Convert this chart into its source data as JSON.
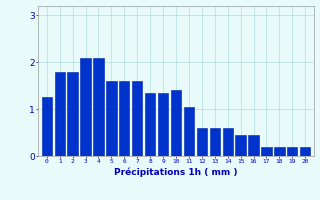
{
  "categories": [
    0,
    1,
    2,
    3,
    4,
    5,
    6,
    7,
    8,
    9,
    10,
    11,
    12,
    13,
    14,
    15,
    16,
    17,
    18,
    19,
    20
  ],
  "values": [
    1.25,
    1.8,
    1.8,
    2.1,
    2.1,
    1.6,
    1.6,
    1.6,
    1.35,
    1.35,
    1.4,
    1.05,
    0.6,
    0.6,
    0.6,
    0.45,
    0.45,
    0.2,
    0.2,
    0.2,
    0.2
  ],
  "bar_color": "#0033cc",
  "bar_edge_color": "#0022aa",
  "background_color": "#e8fafa",
  "grid_color": "#b0dede",
  "xlabel": "Précipitations 1h ( mm )",
  "xlabel_color": "#0000bb",
  "ylim": [
    0,
    3.2
  ],
  "yticks": [
    0,
    1,
    2,
    3
  ],
  "tick_color": "#0000bb",
  "axis_color": "#aaaaaa",
  "figsize": [
    3.2,
    2.0
  ],
  "dpi": 100
}
